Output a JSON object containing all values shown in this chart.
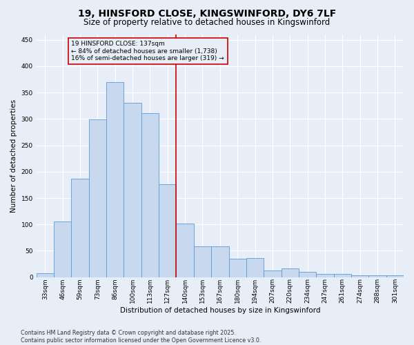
{
  "title1": "19, HINSFORD CLOSE, KINGSWINFORD, DY6 7LF",
  "title2": "Size of property relative to detached houses in Kingswinford",
  "xlabel": "Distribution of detached houses by size in Kingswinford",
  "ylabel": "Number of detached properties",
  "categories": [
    "33sqm",
    "46sqm",
    "59sqm",
    "73sqm",
    "86sqm",
    "100sqm",
    "113sqm",
    "127sqm",
    "140sqm",
    "153sqm",
    "167sqm",
    "180sqm",
    "194sqm",
    "207sqm",
    "220sqm",
    "234sqm",
    "247sqm",
    "261sqm",
    "274sqm",
    "288sqm",
    "301sqm"
  ],
  "values": [
    8,
    105,
    187,
    299,
    370,
    330,
    311,
    176,
    102,
    59,
    59,
    35,
    36,
    13,
    17,
    10,
    6,
    6,
    3,
    4,
    3
  ],
  "bar_color": "#c8d9ef",
  "bar_edge_color": "#5b9bd5",
  "vline_index": 8,
  "vline_color": "#cc0000",
  "annotation_text": "19 HINSFORD CLOSE: 137sqm\n← 84% of detached houses are smaller (1,738)\n16% of semi-detached houses are larger (319) →",
  "annotation_box_edgecolor": "#cc0000",
  "ylim": [
    0,
    460
  ],
  "yticks": [
    0,
    50,
    100,
    150,
    200,
    250,
    300,
    350,
    400,
    450
  ],
  "footer": "Contains HM Land Registry data © Crown copyright and database right 2025.\nContains public sector information licensed under the Open Government Licence v3.0.",
  "background_color": "#e8eef7",
  "grid_color": "#ffffff",
  "title_fontsize": 10,
  "subtitle_fontsize": 8.5,
  "axis_label_fontsize": 7.5,
  "tick_fontsize": 6.5,
  "annotation_fontsize": 6.5,
  "footer_fontsize": 5.8
}
